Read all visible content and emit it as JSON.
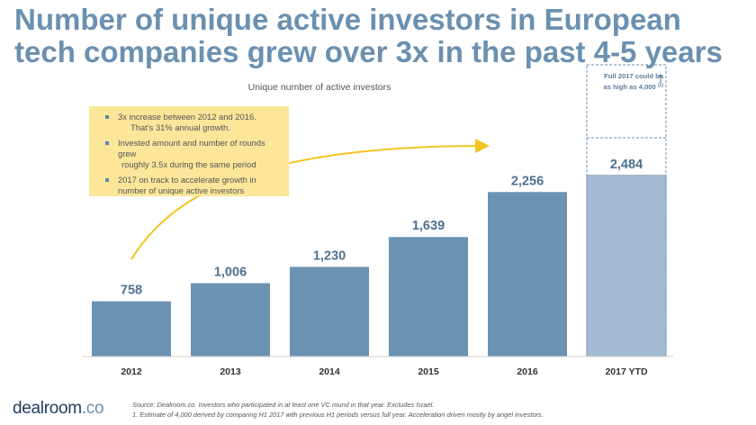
{
  "title": "Number of unique active investors in European tech companies grew over 3x in the past 4-5 years",
  "chart_data": {
    "type": "bar",
    "title": "Unique number of active investors",
    "categories": [
      "2012",
      "2013",
      "2014",
      "2015",
      "2016",
      "2017 YTD"
    ],
    "values": [
      758,
      1006,
      1230,
      1639,
      2256,
      2484
    ],
    "value_labels": [
      "758",
      "1,006",
      "1,230",
      "1,639",
      "2,256",
      "2,484"
    ],
    "projection": {
      "category": "2017 YTD",
      "value": 4000
    },
    "ylim": [
      0,
      4000
    ],
    "xlabel": "",
    "ylabel": "",
    "colors": {
      "bar": "#6d93b3",
      "bar_ytd": "#a4bcd2",
      "label": "#4d7090",
      "arrow": "#f2c51e",
      "dashed": "#6d8fb0"
    }
  },
  "callout": {
    "bullets": [
      {
        "line1": "3x increase between 2012 and 2016.",
        "line2": "That’s 31% annual growth."
      },
      {
        "line1": "Invested amount and number of rounds grew",
        "line2": "roughly 3.5x during the same period"
      },
      {
        "line1": "2017 on track to accelerate growth in",
        "line2": "number of unique active investors"
      }
    ]
  },
  "annotation": {
    "line1": "Full 2017 could be",
    "line2": "as high as 4,000",
    "footnote_mark": "(1)"
  },
  "logo": {
    "name": "dealroom",
    "tld": ".co"
  },
  "footnotes": {
    "source": "Source: Dealroom.co. Investors who participated in at least one VC round in that year. Excludes Israel.",
    "note": "1. Estimate of 4,000 derived by comparing H1 2017 with previous H1 periods versus full year. Acceleration driven mostly by angel investors."
  }
}
